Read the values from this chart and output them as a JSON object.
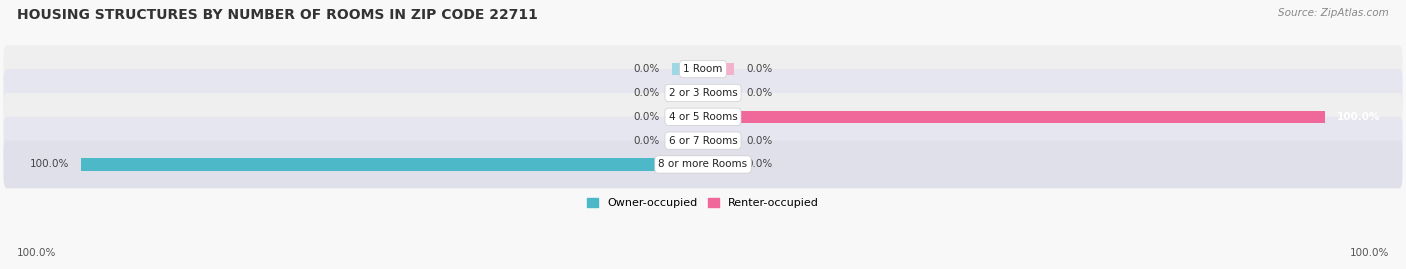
{
  "title": "HOUSING STRUCTURES BY NUMBER OF ROOMS IN ZIP CODE 22711",
  "source": "Source: ZipAtlas.com",
  "categories": [
    "1 Room",
    "2 or 3 Rooms",
    "4 or 5 Rooms",
    "6 or 7 Rooms",
    "8 or more Rooms"
  ],
  "owner_values": [
    0.0,
    0.0,
    0.0,
    0.0,
    100.0
  ],
  "renter_values": [
    0.0,
    0.0,
    100.0,
    0.0,
    0.0
  ],
  "owner_color": "#4db8c8",
  "renter_color": "#f0679a",
  "owner_color_light": "#9dd8e4",
  "renter_color_light": "#f5b0cc",
  "row_colors": [
    "#efefef",
    "#e6e6f0",
    "#efefef",
    "#e6e6f0",
    "#e0e0eb"
  ],
  "axis_label_left": "100.0%",
  "axis_label_right": "100.0%",
  "legend_owner": "Owner-occupied",
  "legend_renter": "Renter-occupied",
  "title_fontsize": 10,
  "source_fontsize": 7.5,
  "label_fontsize": 7.5,
  "bar_label_fontsize": 7.5,
  "placeholder_size": 5,
  "max_val": 100
}
